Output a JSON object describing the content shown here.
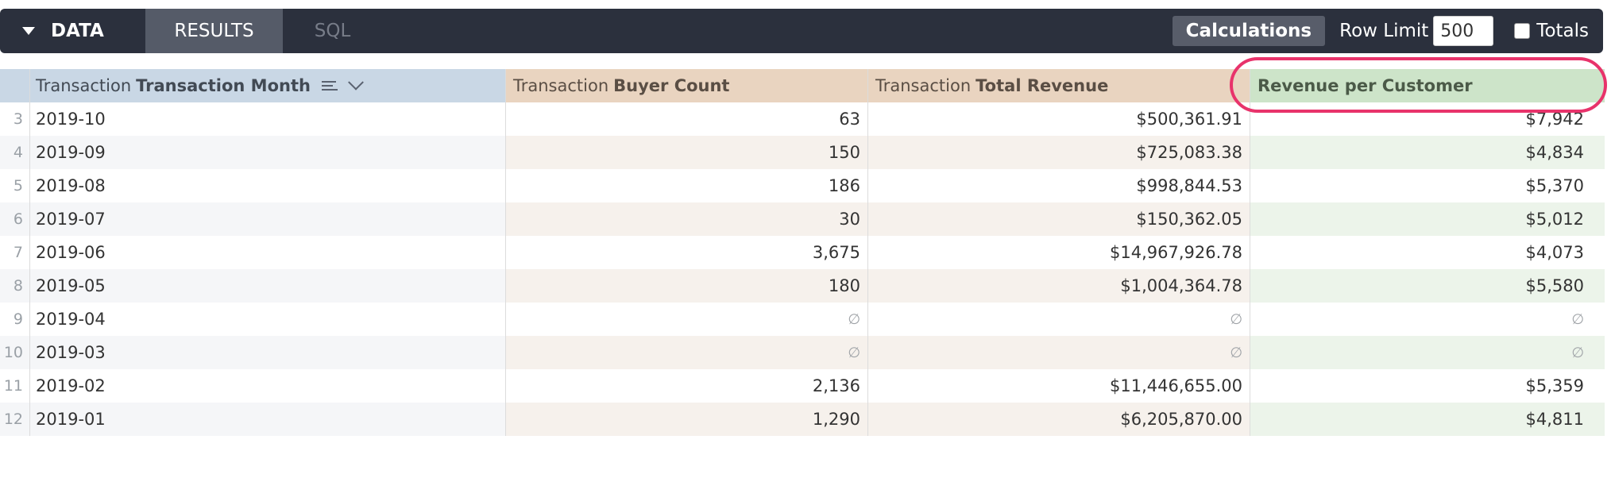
{
  "toolbar": {
    "data_label": "DATA",
    "results_label": "RESULTS",
    "sql_label": "SQL",
    "calculations_label": "Calculations",
    "row_limit_label": "Row Limit",
    "row_limit_value": "500",
    "totals_label": "Totals"
  },
  "columns": {
    "month": {
      "prefix": "Transaction",
      "name": "Transaction Month"
    },
    "buyer": {
      "prefix": "Transaction",
      "name": "Buyer Count"
    },
    "revenue": {
      "prefix": "Transaction",
      "name": "Total Revenue"
    },
    "rpc": {
      "name": "Revenue per Customer"
    }
  },
  "null_symbol": "∅",
  "rows": [
    {
      "index": "3",
      "month": "2019-10",
      "buyer": "63",
      "revenue": "$500,361.91",
      "rpc": "$7,942"
    },
    {
      "index": "4",
      "month": "2019-09",
      "buyer": "150",
      "revenue": "$725,083.38",
      "rpc": "$4,834"
    },
    {
      "index": "5",
      "month": "2019-08",
      "buyer": "186",
      "revenue": "$998,844.53",
      "rpc": "$5,370"
    },
    {
      "index": "6",
      "month": "2019-07",
      "buyer": "30",
      "revenue": "$150,362.05",
      "rpc": "$5,012"
    },
    {
      "index": "7",
      "month": "2019-06",
      "buyer": "3,675",
      "revenue": "$14,967,926.78",
      "rpc": "$4,073"
    },
    {
      "index": "8",
      "month": "2019-05",
      "buyer": "180",
      "revenue": "$1,004,364.78",
      "rpc": "$5,580"
    },
    {
      "index": "9",
      "month": "2019-04",
      "buyer": null,
      "revenue": null,
      "rpc": null
    },
    {
      "index": "10",
      "month": "2019-03",
      "buyer": null,
      "revenue": null,
      "rpc": null
    },
    {
      "index": "11",
      "month": "2019-02",
      "buyer": "2,136",
      "revenue": "$11,446,655.00",
      "rpc": "$5,359"
    },
    {
      "index": "12",
      "month": "2019-01",
      "buyer": "1,290",
      "revenue": "$6,205,870.00",
      "rpc": "$4,811"
    }
  ],
  "colors": {
    "toolbar_bg": "#2b303d",
    "highlight_ring": "#e8336b",
    "dimension_header": "#c9d7e5",
    "measure_header": "#e9d4c0",
    "calculation_header": "#cde4c9"
  }
}
